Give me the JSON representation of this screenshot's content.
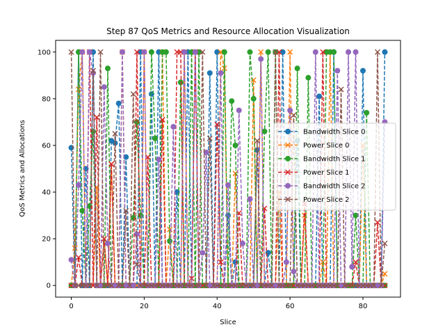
{
  "chart_data": {
    "type": "line",
    "title": "Step 87 QoS Metrics and Resource Allocation Visualization",
    "xlabel": "Slice",
    "ylabel": "QoS Metrics and Allocations",
    "xlim": [
      -4.3,
      90.3
    ],
    "ylim": [
      -5,
      105
    ],
    "xticks": [
      0,
      20,
      40,
      60,
      80
    ],
    "yticks": [
      0,
      20,
      40,
      60,
      80,
      100
    ],
    "grid": false,
    "legend_position": "center-right",
    "x": [
      0,
      1,
      2,
      3,
      4,
      5,
      6,
      7,
      8,
      9,
      10,
      11,
      12,
      13,
      14,
      15,
      16,
      17,
      18,
      19,
      20,
      21,
      22,
      23,
      24,
      25,
      26,
      27,
      28,
      29,
      30,
      31,
      32,
      33,
      34,
      35,
      36,
      37,
      38,
      39,
      40,
      41,
      42,
      43,
      44,
      45,
      46,
      47,
      48,
      49,
      50,
      51,
      52,
      53,
      54,
      55,
      56,
      57,
      58,
      59,
      60,
      61,
      62,
      63,
      64,
      65,
      66,
      67,
      68,
      69,
      70,
      71,
      72,
      73,
      74,
      75,
      76,
      77,
      78,
      79,
      80,
      81,
      82,
      83,
      84,
      85,
      86
    ],
    "series": [
      {
        "name": "Bandwidth Slice 0",
        "color": "#1f77b4",
        "marker": "circle",
        "values": [
          59,
          0,
          100,
          0,
          50,
          0,
          100,
          0,
          0,
          0,
          0,
          62,
          61,
          78,
          0,
          55,
          0,
          0,
          0,
          100,
          0,
          0,
          82,
          0,
          100,
          0,
          0,
          0,
          0,
          40,
          0,
          0,
          100,
          0,
          0,
          0,
          0,
          0,
          91,
          0,
          100,
          0,
          0,
          30,
          0,
          10,
          0,
          0,
          0,
          0,
          0,
          58,
          0,
          0,
          14,
          0,
          0,
          0,
          100,
          0,
          0,
          0,
          62,
          0,
          0,
          0,
          0,
          0,
          81,
          0,
          0,
          0,
          100,
          0,
          0,
          0,
          0,
          0,
          0,
          0,
          92,
          0,
          0,
          0,
          0,
          0,
          100
        ]
      },
      {
        "name": "Power Slice 0",
        "color": "#ff7f0e",
        "marker": "x",
        "values": [
          0,
          16,
          84,
          100,
          0,
          0,
          0,
          42,
          0,
          20,
          0,
          52,
          0,
          0,
          100,
          0,
          0,
          0,
          0,
          0,
          100,
          0,
          0,
          0,
          0,
          100,
          0,
          24,
          0,
          0,
          0,
          100,
          0,
          0,
          100,
          0,
          0,
          0,
          0,
          0,
          0,
          100,
          93,
          0,
          0,
          48,
          0,
          0,
          0,
          0,
          88,
          0,
          100,
          0,
          0,
          0,
          0,
          40,
          0,
          0,
          100,
          0,
          0,
          0,
          30,
          0,
          0,
          0,
          0,
          10,
          0,
          100,
          0,
          0,
          0,
          0,
          0,
          0,
          0,
          0,
          60,
          0,
          0,
          0,
          0,
          0,
          5
        ]
      },
      {
        "name": "Bandwidth Slice 1",
        "color": "#2ca02c",
        "marker": "circle",
        "values": [
          0,
          0,
          100,
          32,
          0,
          34,
          66,
          0,
          0,
          0,
          93,
          0,
          0,
          0,
          0,
          0,
          0,
          29,
          70,
          30,
          0,
          0,
          100,
          63,
          0,
          100,
          100,
          19,
          0,
          0,
          87,
          0,
          0,
          100,
          0,
          100,
          0,
          0,
          0,
          0,
          0,
          0,
          100,
          0,
          79,
          60,
          0,
          0,
          0,
          100,
          80,
          0,
          0,
          66,
          100,
          0,
          100,
          0,
          0,
          0,
          0,
          0,
          93,
          0,
          0,
          89,
          0,
          0,
          0,
          0,
          100,
          100,
          100,
          0,
          0,
          0,
          0,
          0,
          30,
          0,
          0,
          74,
          0,
          0,
          0,
          0,
          0
        ]
      },
      {
        "name": "Power Slice 1",
        "color": "#d62728",
        "marker": "x",
        "values": [
          0,
          0,
          12,
          0,
          0,
          100,
          0,
          72,
          0,
          20,
          0,
          52,
          0,
          0,
          0,
          0,
          0,
          0,
          100,
          0,
          0,
          55,
          0,
          0,
          0,
          71,
          0,
          0,
          0,
          100,
          100,
          0,
          0,
          3,
          100,
          0,
          0,
          0,
          0,
          0,
          69,
          10,
          0,
          0,
          0,
          0,
          31,
          0,
          0,
          0,
          0,
          0,
          0,
          33,
          0,
          0,
          0,
          100,
          0,
          0,
          0,
          0,
          0,
          0,
          35,
          0,
          0,
          0,
          0,
          100,
          0,
          0,
          0,
          0,
          0,
          0,
          0,
          0,
          10,
          0,
          0,
          0,
          0,
          0,
          27,
          0,
          0
        ]
      },
      {
        "name": "Bandwidth Slice 2",
        "color": "#9467bd",
        "marker": "circle",
        "values": [
          11,
          0,
          43,
          100,
          0,
          100,
          91,
          0,
          0,
          85,
          18,
          0,
          0,
          0,
          100,
          0,
          0,
          0,
          22,
          0,
          100,
          0,
          0,
          0,
          54,
          0,
          0,
          0,
          68,
          0,
          0,
          100,
          0,
          0,
          100,
          0,
          14,
          57,
          0,
          0,
          0,
          91,
          0,
          43,
          0,
          0,
          75,
          18,
          0,
          37,
          0,
          0,
          97,
          0,
          0,
          0,
          0,
          0,
          0,
          10,
          75,
          6,
          0,
          0,
          0,
          0,
          0,
          100,
          0,
          0,
          0,
          0,
          0,
          92,
          0,
          0,
          100,
          8,
          100,
          0,
          0,
          0,
          0,
          0,
          0,
          0,
          70
        ]
      },
      {
        "name": "Power Slice 2",
        "color": "#8c564b",
        "marker": "x",
        "values": [
          100,
          0,
          0,
          0,
          0,
          0,
          92,
          0,
          100,
          0,
          0,
          0,
          65,
          0,
          0,
          32,
          0,
          82,
          9,
          0,
          0,
          0,
          0,
          0,
          0,
          0,
          0,
          0,
          0,
          0,
          0,
          0,
          0,
          0,
          0,
          0,
          100,
          0,
          63,
          0,
          0,
          0,
          0,
          0,
          0,
          0,
          0,
          0,
          0,
          0,
          0,
          62,
          0,
          0,
          0,
          0,
          100,
          0,
          0,
          0,
          0,
          73,
          0,
          0,
          0,
          0,
          0,
          0,
          0,
          0,
          0,
          0,
          0,
          0,
          84,
          0,
          0,
          0,
          0,
          0,
          0,
          0,
          0,
          0,
          100,
          0,
          18
        ]
      }
    ]
  }
}
